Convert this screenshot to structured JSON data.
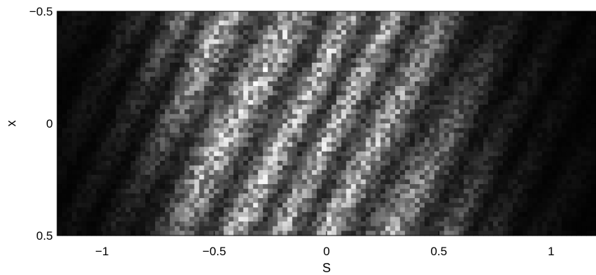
{
  "chart_data": {
    "type": "heatmap",
    "colormap": "grayscale",
    "xlabel": "S",
    "ylabel": "x",
    "xlim": [
      -1.2,
      1.2
    ],
    "ylim": [
      -0.5,
      0.5
    ],
    "y_inverted": true,
    "x_ticks": [
      -1,
      -0.5,
      0,
      0.5,
      1
    ],
    "x_tick_labels": [
      "−1",
      "−0.5",
      "0",
      "0.5",
      "1"
    ],
    "y_ticks": [
      -0.5,
      0,
      0.5
    ],
    "y_tick_labels": [
      "−0.5",
      "0",
      "0.5"
    ],
    "grid": false,
    "intensity_profile_by_S": [
      {
        "S": -1.2,
        "value": 0.04
      },
      {
        "S": -1.0,
        "value": 0.08
      },
      {
        "S": -0.85,
        "value": 0.14
      },
      {
        "S": -0.7,
        "value": 0.3
      },
      {
        "S": -0.6,
        "value": 0.52
      },
      {
        "S": -0.5,
        "value": 0.62
      },
      {
        "S": -0.4,
        "value": 0.6
      },
      {
        "S": -0.3,
        "value": 0.64
      },
      {
        "S": -0.2,
        "value": 0.62
      },
      {
        "S": -0.1,
        "value": 0.58
      },
      {
        "S": 0.0,
        "value": 0.62
      },
      {
        "S": 0.1,
        "value": 0.58
      },
      {
        "S": 0.2,
        "value": 0.62
      },
      {
        "S": 0.3,
        "value": 0.54
      },
      {
        "S": 0.4,
        "value": 0.46
      },
      {
        "S": 0.5,
        "value": 0.38
      },
      {
        "S": 0.6,
        "value": 0.27
      },
      {
        "S": 0.7,
        "value": 0.18
      },
      {
        "S": 0.8,
        "value": 0.1
      },
      {
        "S": 1.0,
        "value": 0.05
      },
      {
        "S": 1.2,
        "value": 0.03
      }
    ]
  }
}
